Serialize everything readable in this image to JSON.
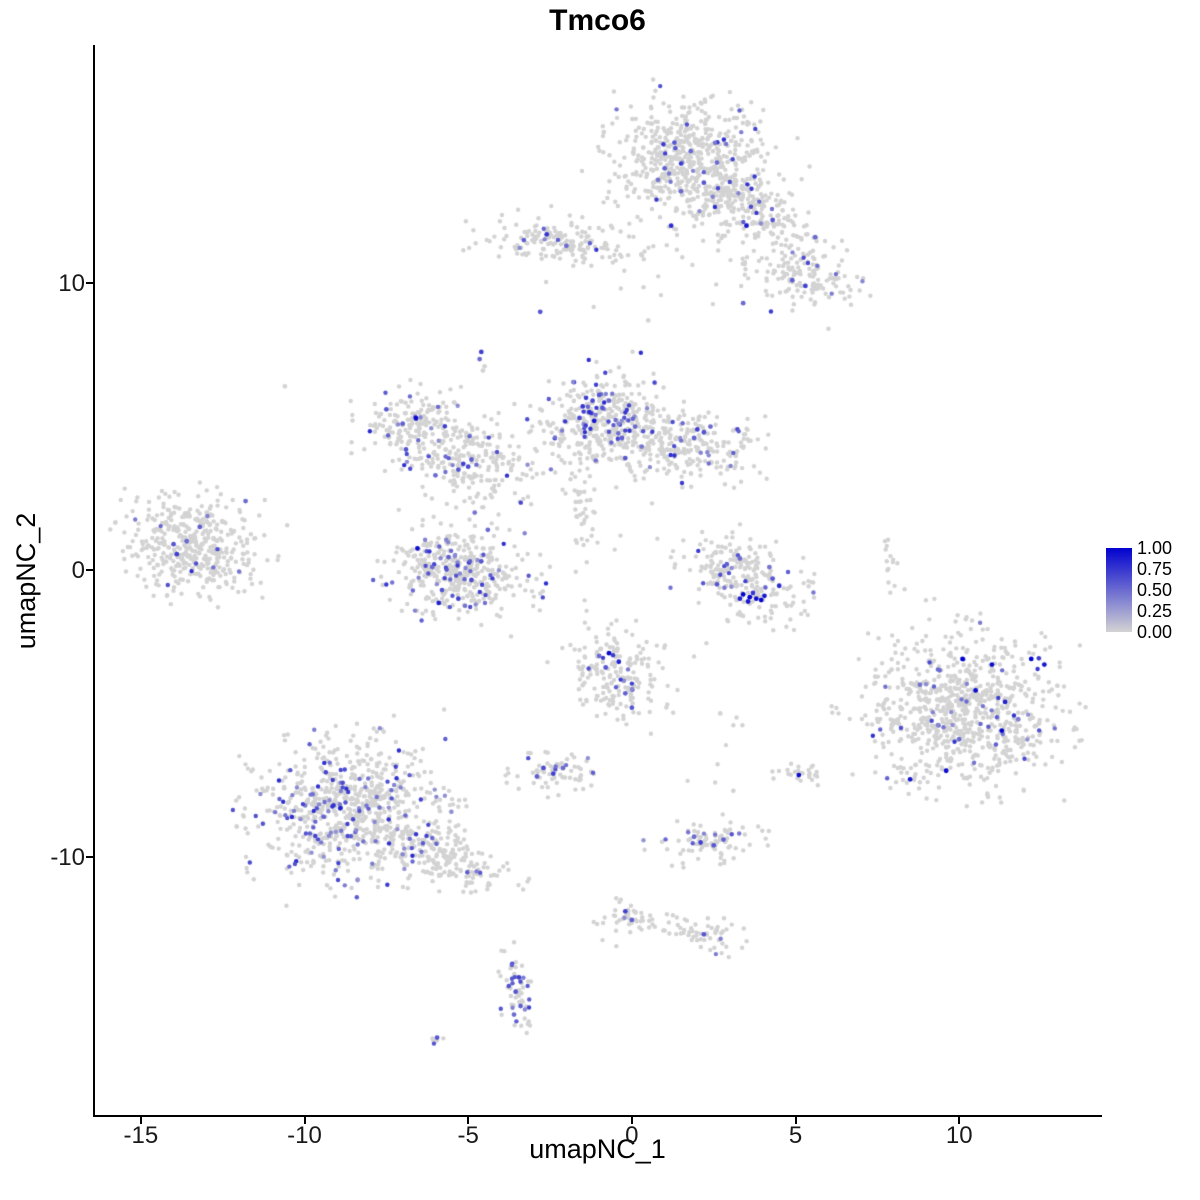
{
  "chart_data": {
    "type": "scatter",
    "title": "Tmco6",
    "xlabel": "umapNC_1",
    "ylabel": "umapNC_2",
    "x_domain": [
      -16.4,
      14.3
    ],
    "y_domain": [
      -19.0,
      18.3
    ],
    "x_ticks": [
      -15,
      -10,
      -5,
      0,
      5,
      10
    ],
    "y_ticks": [
      -10,
      0,
      10
    ],
    "grid": false,
    "legend": {
      "position": "right",
      "labels": [
        "1.00",
        "0.75",
        "0.50",
        "0.25",
        "0.00"
      ],
      "values": [
        1.0,
        0.75,
        0.5,
        0.25,
        0.0
      ]
    },
    "colors": {
      "low": "#d3d3d3",
      "high": "#0202cf",
      "background": "#ffffff"
    },
    "point_radius": 2.2,
    "seed": 42,
    "expression_t_range": [
      0.3,
      0.8
    ],
    "clusters": [
      {
        "name": "top-main",
        "cx": 1.8,
        "cy": 14.2,
        "sx": 1.25,
        "sy": 1.05,
        "rot": -0.5,
        "n": 640,
        "f": 0.05
      },
      {
        "name": "top-arm",
        "cx": 3.6,
        "cy": 12.5,
        "sx": 1.05,
        "sy": 0.5,
        "rot": -0.55,
        "n": 170,
        "f": 0.04
      },
      {
        "name": "top-right",
        "cx": 5.2,
        "cy": 10.3,
        "sx": 0.85,
        "sy": 0.6,
        "rot": -0.4,
        "n": 160,
        "f": 0.06
      },
      {
        "name": "upper-left-band",
        "cx": -2.4,
        "cy": 11.5,
        "sx": 1.05,
        "sy": 0.35,
        "rot": -0.12,
        "n": 160,
        "f": 0.05
      },
      {
        "name": "upper-sparse",
        "cx": 0.9,
        "cy": 11.2,
        "sx": 1.9,
        "sy": 1.0,
        "rot": 0.1,
        "n": 50,
        "f": 0.02
      },
      {
        "name": "mid-left-a",
        "cx": -6.8,
        "cy": 5.3,
        "sx": 0.8,
        "sy": 0.5,
        "rot": 0.35,
        "n": 130,
        "f": 0.09
      },
      {
        "name": "mid-left-b",
        "cx": -5.2,
        "cy": 4.0,
        "sx": 1.05,
        "sy": 0.68,
        "rot": -0.35,
        "n": 260,
        "f": 0.08
      },
      {
        "name": "center-main",
        "cx": -0.9,
        "cy": 5.1,
        "sx": 0.85,
        "sy": 0.85,
        "rot": 0.4,
        "n": 380,
        "f": 0.13
      },
      {
        "name": "center-right",
        "cx": 1.6,
        "cy": 4.4,
        "sx": 1.15,
        "sy": 0.55,
        "rot": -0.2,
        "n": 260,
        "f": 0.05
      },
      {
        "name": "center-trail",
        "cx": -1.6,
        "cy": 2.1,
        "sx": 0.28,
        "sy": 1.2,
        "rot": 0.1,
        "n": 38,
        "f": 0.03
      },
      {
        "name": "far-left",
        "cx": -13.4,
        "cy": 0.8,
        "sx": 1.0,
        "sy": 0.85,
        "rot": -0.3,
        "n": 430,
        "f": 0.025
      },
      {
        "name": "center-left-crescent",
        "cx": -5.2,
        "cy": -0.1,
        "sx": 1.0,
        "sy": 0.72,
        "rot": -0.2,
        "n": 430,
        "f": 0.11
      },
      {
        "name": "center-right-crescent",
        "cx": 3.4,
        "cy": -0.3,
        "sx": 0.9,
        "sy": 0.62,
        "rot": -0.5,
        "n": 240,
        "f": 0.09
      },
      {
        "name": "right-thread",
        "cx": 7.85,
        "cy": 0.0,
        "sx": 0.1,
        "sy": 0.55,
        "rot": 0,
        "n": 14,
        "f": 0
      },
      {
        "name": "lower-center",
        "cx": -0.5,
        "cy": -3.6,
        "sx": 0.72,
        "sy": 0.92,
        "rot": 0.3,
        "n": 200,
        "f": 0.06
      },
      {
        "name": "small-left-low",
        "cx": -2.5,
        "cy": -7.0,
        "sx": 0.62,
        "sy": 0.35,
        "rot": 0.2,
        "n": 70,
        "f": 0.12
      },
      {
        "name": "big-right",
        "cx": 10.2,
        "cy": -4.9,
        "sx": 1.5,
        "sy": 1.28,
        "rot": -0.35,
        "n": 850,
        "f": 0.035
      },
      {
        "name": "tiny-right",
        "cx": 5.1,
        "cy": -7.1,
        "sx": 0.36,
        "sy": 0.22,
        "rot": 0,
        "n": 26,
        "f": 0.05
      },
      {
        "name": "bottom-left-main",
        "cx": -8.6,
        "cy": -8.4,
        "sx": 1.35,
        "sy": 1.15,
        "rot": 0.2,
        "n": 780,
        "f": 0.16
      },
      {
        "name": "bottom-left-arm",
        "cx": -5.9,
        "cy": -9.9,
        "sx": 1.1,
        "sy": 0.45,
        "rot": -0.45,
        "n": 200,
        "f": 0.04
      },
      {
        "name": "bottom-mid",
        "cx": 2.4,
        "cy": -9.5,
        "sx": 0.78,
        "sy": 0.36,
        "rot": 0.1,
        "n": 85,
        "f": 0.14
      },
      {
        "name": "bottom-n",
        "cx": -0.1,
        "cy": -12.1,
        "sx": 0.45,
        "sy": 0.4,
        "rot": 0,
        "n": 42,
        "f": 0.07
      },
      {
        "name": "bottom-o",
        "cx": 2.3,
        "cy": -12.8,
        "sx": 0.5,
        "sy": 0.3,
        "rot": -0.3,
        "n": 46,
        "f": 0.04
      },
      {
        "name": "bottom-no-trail",
        "cx": 1.1,
        "cy": -12.5,
        "sx": 0.7,
        "sy": 0.14,
        "rot": -0.25,
        "n": 16,
        "f": 0
      },
      {
        "name": "bottom-p",
        "cx": -3.5,
        "cy": -14.7,
        "sx": 0.22,
        "sy": 0.75,
        "rot": 0.12,
        "n": 62,
        "f": 0.18
      },
      {
        "name": "tiny-q",
        "cx": -6.0,
        "cy": -16.3,
        "sx": 0.22,
        "sy": 0.12,
        "rot": 0,
        "n": 6,
        "f": 0.15
      },
      {
        "name": "mid-sparse",
        "cx": 0.4,
        "cy": 1.6,
        "sx": 3.0,
        "sy": 2.0,
        "rot": 0,
        "n": 26,
        "f": 0
      },
      {
        "name": "right-mid-sparse",
        "cx": 2.9,
        "cy": -6.0,
        "sx": 0.5,
        "sy": 1.4,
        "rot": 0,
        "n": 7,
        "f": 0
      }
    ],
    "accent_points": [
      [
        3.4,
        -0.85,
        1
      ],
      [
        3.6,
        -0.95,
        1
      ],
      [
        3.8,
        -1.0,
        0.95
      ],
      [
        3.55,
        -1.1,
        0.9
      ],
      [
        3.95,
        -1.05,
        1
      ],
      [
        3.3,
        -1.0,
        0.85
      ],
      [
        4.05,
        -0.9,
        0.9
      ],
      [
        3.7,
        -0.8,
        0.75
      ],
      [
        2.9,
        0.2,
        0.55
      ],
      [
        3.3,
        0.4,
        0.5
      ],
      [
        4.3,
        -0.3,
        0.6
      ],
      [
        4.5,
        -0.55,
        0.8
      ],
      [
        2.6,
        -0.5,
        0.6
      ],
      [
        4.2,
        0.1,
        0.45
      ],
      [
        10.1,
        -3.1,
        1
      ],
      [
        11.0,
        -3.3,
        0.95
      ],
      [
        12.2,
        -3.1,
        1
      ],
      [
        10.5,
        -4.2,
        0.95
      ],
      [
        11.3,
        -5.6,
        1
      ],
      [
        9.6,
        -7.0,
        0.95
      ],
      [
        8.5,
        -7.3,
        0.9
      ],
      [
        11.4,
        -4.6,
        0.85
      ],
      [
        9.4,
        -3.5,
        0.5
      ],
      [
        8.8,
        -4.0,
        0.45
      ],
      [
        10.0,
        -5.9,
        0.5
      ],
      [
        11.8,
        -5.2,
        0.4
      ],
      [
        12.6,
        -3.3,
        0.9
      ],
      [
        5.1,
        -7.15,
        0.95
      ],
      [
        -6.55,
        0.75,
        0.95
      ],
      [
        -5.9,
        -1.15,
        0.85
      ],
      [
        -5.3,
        -1.0,
        0.7
      ],
      [
        -4.6,
        0.3,
        0.6
      ],
      [
        -5.6,
        0.45,
        0.55
      ],
      [
        -4.9,
        -0.35,
        0.65
      ],
      [
        -6.1,
        0.1,
        0.5
      ],
      [
        -4.4,
        1.4,
        0.5
      ],
      [
        -4.8,
        2.0,
        0.45
      ],
      [
        -5.8,
        -0.7,
        0.6
      ],
      [
        -6.6,
        5.3,
        0.95
      ],
      [
        -7.5,
        5.6,
        0.6
      ],
      [
        -7.0,
        5.1,
        0.55
      ],
      [
        -6.9,
        4.2,
        0.6
      ],
      [
        -5.15,
        3.7,
        0.7
      ],
      [
        -5.0,
        3.6,
        0.65
      ],
      [
        -5.3,
        3.5,
        0.6
      ],
      [
        -4.9,
        3.85,
        0.55
      ],
      [
        -6.0,
        3.3,
        0.5
      ],
      [
        -1.4,
        6.0,
        0.7
      ],
      [
        -1.2,
        5.9,
        0.65
      ],
      [
        -1.5,
        5.7,
        0.75
      ],
      [
        -1.0,
        6.1,
        0.6
      ],
      [
        -1.3,
        5.5,
        0.8
      ],
      [
        -0.9,
        5.65,
        0.6
      ],
      [
        -1.6,
        5.3,
        0.65
      ],
      [
        -0.7,
        5.9,
        0.5
      ],
      [
        -1.15,
        5.2,
        0.9
      ],
      [
        -0.3,
        4.6,
        0.55
      ],
      [
        0.1,
        5.0,
        0.5
      ],
      [
        -0.2,
        3.9,
        0.6
      ],
      [
        0.3,
        4.3,
        0.45
      ],
      [
        2.0,
        4.9,
        0.7
      ],
      [
        2.2,
        4.8,
        0.6
      ],
      [
        1.9,
        4.6,
        0.55
      ],
      [
        2.4,
        5.0,
        0.5
      ],
      [
        -2.6,
        11.7,
        0.75
      ],
      [
        -3.3,
        11.5,
        0.55
      ],
      [
        -2.0,
        11.3,
        0.5
      ],
      [
        -2.8,
        9.0,
        0.6
      ],
      [
        -4.6,
        7.6,
        0.7
      ],
      [
        -4.65,
        7.35,
        0.5
      ],
      [
        -4.5,
        7.1,
        0
      ],
      [
        -4.55,
        6.95,
        0
      ],
      [
        -14.0,
        0.9,
        0.6
      ],
      [
        -13.9,
        0.55,
        0.7
      ],
      [
        -13.2,
        1.5,
        0.55
      ],
      [
        -11.8,
        2.4,
        0.5
      ],
      [
        -13.6,
        1.0,
        0.5
      ],
      [
        1.3,
        14.9,
        0.6
      ],
      [
        1.8,
        14.6,
        0.5
      ],
      [
        1.0,
        14.0,
        0.55
      ],
      [
        2.2,
        13.5,
        0.6
      ],
      [
        1.5,
        13.2,
        0.5
      ],
      [
        0.8,
        13.6,
        0.45
      ],
      [
        2.6,
        14.2,
        0.5
      ],
      [
        1.2,
        12.0,
        0.8
      ],
      [
        3.5,
        12.0,
        0.9
      ],
      [
        5.3,
        9.9,
        0.7
      ],
      [
        4.9,
        10.1,
        0.55
      ],
      [
        4.3,
        12.2,
        0.6
      ],
      [
        5.6,
        11.6,
        0.5
      ],
      [
        3.4,
        9.3,
        0.5
      ],
      [
        -0.7,
        -2.9,
        0.95
      ],
      [
        -0.4,
        -3.2,
        0.85
      ],
      [
        -0.8,
        -3.4,
        0.6
      ],
      [
        -0.2,
        -4.3,
        0.55
      ],
      [
        0.0,
        -4.8,
        0.6
      ],
      [
        -1.0,
        -3.0,
        0.5
      ],
      [
        -2.7,
        -6.9,
        0.65
      ],
      [
        -2.4,
        -7.1,
        0.7
      ],
      [
        -2.1,
        -6.9,
        0.5
      ],
      [
        -2.9,
        -7.2,
        0.55
      ],
      [
        2.1,
        -9.5,
        0.7
      ],
      [
        2.5,
        -9.6,
        0.6
      ],
      [
        2.8,
        -9.4,
        0.55
      ],
      [
        1.9,
        -9.3,
        0.5
      ],
      [
        -0.2,
        -11.9,
        0.7
      ],
      [
        0.0,
        -12.2,
        0.55
      ],
      [
        2.2,
        -12.7,
        0.6
      ],
      [
        -3.45,
        -14.2,
        0.7
      ],
      [
        -3.55,
        -14.7,
        0.6
      ],
      [
        -3.4,
        -15.2,
        0.55
      ],
      [
        -3.6,
        -15.5,
        0.5
      ],
      [
        -5.95,
        -16.3,
        0.6
      ],
      [
        -8.9,
        -8.3,
        0.85
      ],
      [
        -10.6,
        6.4,
        0
      ],
      [
        2.7,
        -5.0,
        0
      ],
      [
        3.1,
        -7.7,
        0
      ],
      [
        0.5,
        8.7,
        0
      ]
    ]
  }
}
